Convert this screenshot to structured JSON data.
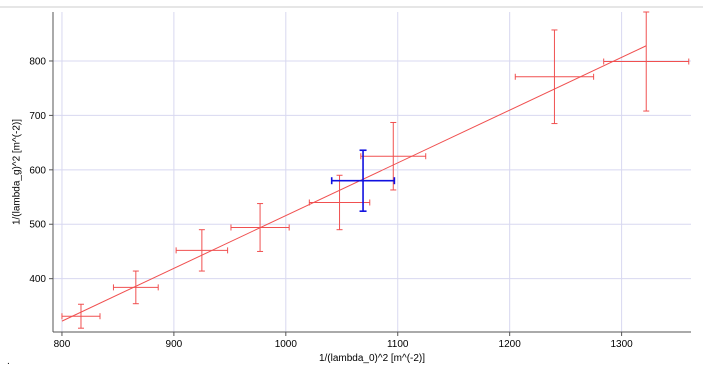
{
  "chart_data": {
    "type": "scatter",
    "xlabel": "1/(lambda_0)^2 [m^(-2)]",
    "ylabel": "1/(lambda_g)^2 [m^(-2)]",
    "xlim": [
      792,
      1362
    ],
    "ylim": [
      302,
      890
    ],
    "x_ticks": [
      800,
      900,
      1000,
      1100,
      1200,
      1300
    ],
    "y_ticks": [
      400,
      500,
      600,
      700,
      800
    ],
    "x_tick_labels": [
      "800",
      "900",
      "1000",
      "1100",
      "1200",
      "1300"
    ],
    "y_tick_labels": [
      "400",
      "500",
      "600",
      "700",
      "800"
    ],
    "grid": true,
    "legend": "none",
    "colors": {
      "series": "#f05050",
      "highlight": "#1010e0",
      "grid": "#d8d8f0",
      "axis": "#555555"
    },
    "series": [
      {
        "color": "#f05050",
        "points": [
          {
            "x": 817,
            "y": 331,
            "xerr": 17,
            "yerr": 22
          },
          {
            "x": 866,
            "y": 384,
            "xerr": 20,
            "yerr": 30
          },
          {
            "x": 925,
            "y": 452,
            "xerr": 23,
            "yerr": 38
          },
          {
            "x": 977,
            "y": 494,
            "xerr": 26,
            "yerr": 44
          },
          {
            "x": 1048,
            "y": 540,
            "xerr": 27,
            "yerr": 50
          },
          {
            "x": 1096,
            "y": 625,
            "xerr": 29,
            "yerr": 62
          },
          {
            "x": 1240,
            "y": 771,
            "xerr": 35,
            "yerr": 86
          },
          {
            "x": 1322,
            "y": 799,
            "xerr": 38,
            "yerr": 91
          }
        ]
      },
      {
        "color": "#1010e0",
        "points": [
          {
            "x": 1069,
            "y": 580,
            "xerr": 28,
            "yerr": 56
          }
        ]
      }
    ],
    "fit_line": {
      "x": [
        800,
        1322
      ],
      "y": [
        322,
        828
      ],
      "color": "#f05050"
    }
  },
  "footer": {
    "corner_mark": "."
  }
}
